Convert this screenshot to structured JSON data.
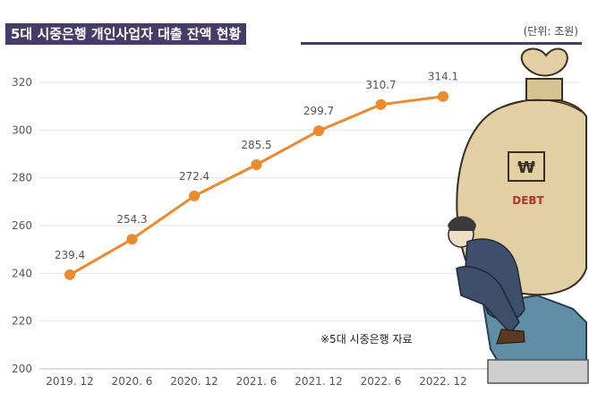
{
  "header": {
    "title": "5대 시중은행 개인사업자 대출 잔액 현황",
    "unit": "(단위: 조원)"
  },
  "note": "※5대 시중은행 자료",
  "illustration": {
    "description_icon": "debt-bag-man-icon",
    "bag_text": "DEBT",
    "colors": {
      "bag": "#e2cfa4",
      "suit": "#3f4f6a",
      "rock": "#5f8fa6"
    }
  },
  "colors": {
    "line": "#ec8a2e",
    "title_bg": "#463c68",
    "grid": "#e6e6e6"
  },
  "chart_data": {
    "type": "line",
    "categories": [
      "2019. 12",
      "2020. 6",
      "2020. 12",
      "2021. 6",
      "2021. 12",
      "2022. 6",
      "2022. 12"
    ],
    "series": [
      {
        "values": [
          239.4,
          254.3,
          272.4,
          285.5,
          299.7,
          310.7,
          314.1
        ]
      }
    ],
    "data_labels": [
      "239.4",
      "254.3",
      "272.4",
      "285.5",
      "299.7",
      "310.7",
      "314.1"
    ],
    "title": "5대 시중은행 개인사업자 대출 잔액 현황",
    "xlabel": "",
    "ylabel": "",
    "ylim": [
      200,
      320
    ],
    "yticks": [
      200,
      220,
      240,
      260,
      280,
      300,
      320
    ],
    "grid": true,
    "legend": "none"
  }
}
